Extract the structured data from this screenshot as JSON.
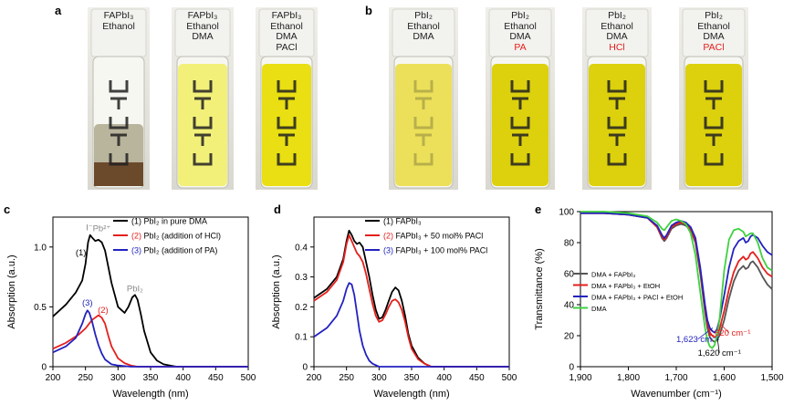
{
  "panels": {
    "a": {
      "letter": "a",
      "vials": [
        {
          "lines": [
            "FAPbI₃",
            "Ethanol"
          ],
          "extra": "",
          "liquid": "#b9b49c",
          "cap": "#f2f2ef"
        },
        {
          "lines": [
            "FAPbI₃",
            "Ethanol",
            "DMA"
          ],
          "extra": "",
          "liquid": "#f3f07a",
          "cap": "#f2f2ef"
        },
        {
          "lines": [
            "FAPbI₃",
            "Ethanol",
            "DMA",
            "PACl"
          ],
          "extra": "",
          "liquid": "#e9df12",
          "cap": "#f2f2ef"
        }
      ]
    },
    "b": {
      "letter": "b",
      "vials": [
        {
          "lines": [
            "PbI₂",
            "Ethanol",
            "DMA"
          ],
          "extra": "",
          "liquid": "#ece05a",
          "cap": "#f2f2ef"
        },
        {
          "lines": [
            "PbI₂",
            "Ethanol",
            "DMA"
          ],
          "extra": "PA",
          "liquid": "#dcd10c",
          "cap": "#f2f2ef"
        },
        {
          "lines": [
            "PbI₂",
            "Ethanol",
            "DMA"
          ],
          "extra": "HCl",
          "liquid": "#dcd10c",
          "cap": "#f2f2ef"
        },
        {
          "lines": [
            "PbI₂",
            "Ethanol",
            "DMA"
          ],
          "extra": "PACl",
          "liquid": "#dcd10c",
          "cap": "#f2f2ef"
        }
      ],
      "extra_color": "#e4201c"
    },
    "c": {
      "letter": "c"
    },
    "d": {
      "letter": "d"
    },
    "e": {
      "letter": "e"
    }
  },
  "chart_data": [
    {
      "type": "line",
      "panel": "c",
      "xlabel": "Wavelength (nm)",
      "ylabel": "Absorption (a.u.)",
      "xlim": [
        200,
        500
      ],
      "ylim": [
        0,
        1.25
      ],
      "xticks": [
        200,
        250,
        300,
        350,
        400,
        450,
        500
      ],
      "yticks": [
        0,
        0.5,
        1.0
      ],
      "ytick_labels": [
        "0",
        "0.5",
        "1.0"
      ],
      "legend_position": "top-right",
      "annotations": [
        {
          "text": "I⁻",
          "x": 256,
          "y": 1.14,
          "color": "#888888"
        },
        {
          "text": "Pb²⁺",
          "x": 275,
          "y": 1.13,
          "color": "#888888"
        },
        {
          "text": "PbI₂",
          "x": 326,
          "y": 0.63,
          "color": "#888888"
        },
        {
          "text": "(1)",
          "x": 243,
          "y": 0.93,
          "color": "#000000"
        },
        {
          "text": "(2)",
          "x": 277,
          "y": 0.45,
          "color": "#e4201c"
        },
        {
          "text": "(3)",
          "x": 253,
          "y": 0.51,
          "color": "#2222c0"
        }
      ],
      "series": [
        {
          "name": "(1) PbI₂ in pure DMA",
          "legend_num": "(1)",
          "legend_text": "PbI₂ in pure DMA",
          "color": "#000000",
          "x": [
            200,
            220,
            235,
            245,
            250,
            254,
            257,
            260,
            265,
            270,
            275,
            280,
            290,
            300,
            310,
            316,
            322,
            326,
            330,
            335,
            340,
            350,
            360,
            370,
            380,
            390,
            400,
            420,
            450,
            500
          ],
          "y": [
            0.42,
            0.52,
            0.62,
            0.72,
            0.86,
            1.04,
            1.1,
            1.08,
            1.05,
            1.06,
            1.04,
            0.97,
            0.7,
            0.5,
            0.45,
            0.5,
            0.58,
            0.6,
            0.56,
            0.44,
            0.3,
            0.12,
            0.05,
            0.02,
            0.01,
            0.0,
            0.0,
            0.0,
            0.0,
            0.0
          ]
        },
        {
          "name": "(2) PbI₂ (addition of HCl)",
          "legend_num": "(2)",
          "legend_text": "PbI₂ (addition of HCl)",
          "color": "#e4201c",
          "x": [
            200,
            220,
            240,
            250,
            260,
            265,
            270,
            275,
            280,
            285,
            290,
            300,
            310,
            320,
            330,
            350,
            400,
            500
          ],
          "y": [
            0.15,
            0.2,
            0.27,
            0.32,
            0.39,
            0.41,
            0.43,
            0.41,
            0.36,
            0.26,
            0.17,
            0.07,
            0.03,
            0.01,
            0.0,
            0.0,
            0.0,
            0.0
          ]
        },
        {
          "name": "(3) PbI₂ (addition of PA)",
          "legend_num": "(3)",
          "legend_text": "PbI₂ (addition of PA)",
          "color": "#2222c0",
          "x": [
            200,
            220,
            235,
            245,
            250,
            253,
            256,
            260,
            265,
            270,
            275,
            280,
            290,
            300,
            320,
            350,
            400,
            500
          ],
          "y": [
            0.12,
            0.17,
            0.24,
            0.36,
            0.44,
            0.47,
            0.45,
            0.38,
            0.27,
            0.18,
            0.11,
            0.06,
            0.02,
            0.01,
            0.0,
            0.0,
            0.0,
            0.0
          ]
        }
      ]
    },
    {
      "type": "line",
      "panel": "d",
      "xlabel": "Wavelength (nm)",
      "ylabel": "Absorption (a.u.)",
      "xlim": [
        200,
        500
      ],
      "ylim": [
        0,
        0.5
      ],
      "xticks": [
        200,
        250,
        300,
        350,
        400,
        450,
        500
      ],
      "yticks": [
        0,
        0.1,
        0.2,
        0.3,
        0.4
      ],
      "ytick_labels": [
        "0",
        "0.1",
        "0.2",
        "0.3",
        "0.4"
      ],
      "legend_position": "top-right",
      "series": [
        {
          "name": "(1) FAPbI₃",
          "legend_num": "(1)",
          "legend_text": "FAPbI₃",
          "color": "#000000",
          "x": [
            200,
            220,
            235,
            245,
            250,
            254,
            258,
            262,
            266,
            270,
            275,
            280,
            285,
            290,
            295,
            300,
            305,
            310,
            315,
            320,
            325,
            330,
            335,
            340,
            345,
            350,
            360,
            370,
            380,
            400,
            450,
            500
          ],
          "y": [
            0.23,
            0.26,
            0.3,
            0.36,
            0.42,
            0.455,
            0.44,
            0.42,
            0.41,
            0.415,
            0.4,
            0.35,
            0.3,
            0.24,
            0.19,
            0.16,
            0.165,
            0.19,
            0.22,
            0.25,
            0.265,
            0.255,
            0.22,
            0.17,
            0.11,
            0.07,
            0.03,
            0.01,
            0.0,
            0.0,
            0.0,
            0.0
          ]
        },
        {
          "name": "(2) FAPbI₃ + 50 mol% PACl",
          "legend_num": "(2)",
          "legend_text": "FAPbI₃ + 50 mol% PACl",
          "color": "#e4201c",
          "x": [
            200,
            220,
            235,
            245,
            250,
            254,
            258,
            262,
            266,
            270,
            275,
            280,
            285,
            290,
            295,
            300,
            305,
            310,
            315,
            320,
            325,
            330,
            335,
            340,
            345,
            350,
            360,
            370,
            380,
            400,
            450,
            500
          ],
          "y": [
            0.22,
            0.25,
            0.29,
            0.35,
            0.41,
            0.44,
            0.42,
            0.4,
            0.38,
            0.37,
            0.35,
            0.31,
            0.26,
            0.21,
            0.17,
            0.15,
            0.155,
            0.175,
            0.2,
            0.22,
            0.225,
            0.215,
            0.19,
            0.15,
            0.1,
            0.06,
            0.025,
            0.01,
            0.0,
            0.0,
            0.0,
            0.0
          ]
        },
        {
          "name": "(3) FAPbI₃ + 100 mol% PACl",
          "legend_num": "(3)",
          "legend_text": "FAPbI₃ + 100 mol% PACl",
          "color": "#2222c0",
          "x": [
            200,
            220,
            235,
            245,
            250,
            254,
            258,
            262,
            266,
            270,
            275,
            280,
            285,
            290,
            300,
            320,
            350,
            400,
            500
          ],
          "y": [
            0.1,
            0.13,
            0.17,
            0.22,
            0.26,
            0.28,
            0.275,
            0.24,
            0.18,
            0.12,
            0.07,
            0.04,
            0.02,
            0.01,
            0.0,
            0.0,
            0.0,
            0.0,
            0.0
          ]
        }
      ]
    },
    {
      "type": "line",
      "panel": "e",
      "xlabel": "Wavenumber (cm⁻¹)",
      "ylabel": "Transmittance (%)",
      "xlim": [
        1900,
        1500
      ],
      "ylim": [
        0,
        100
      ],
      "xticks": [
        1900,
        1800,
        1700,
        1600,
        1500
      ],
      "xtick_labels": [
        "1,900",
        "1,800",
        "1,700",
        "1,600",
        "1,500"
      ],
      "yticks": [
        0,
        20,
        40,
        60,
        80,
        100
      ],
      "legend_position": "center-right",
      "annotations": [
        {
          "text": "1,623 cm⁻¹",
          "x": 1655,
          "y": 16,
          "color": "#2222c0",
          "arrow_to": [
            1624,
            25
          ]
        },
        {
          "text": "1,620 cm⁻¹",
          "x": 1590,
          "y": 20,
          "color": "#e4201c",
          "arrow_to": [
            1606,
            27
          ]
        },
        {
          "text": "1,620 cm⁻¹",
          "x": 1610,
          "y": 7,
          "color": "#000000",
          "arrow_to": [
            1614,
            18
          ]
        }
      ],
      "series": [
        {
          "name": "DMA + FAPbI₃",
          "color": "#555555",
          "x": [
            1900,
            1850,
            1800,
            1760,
            1740,
            1730,
            1725,
            1720,
            1710,
            1700,
            1690,
            1680,
            1670,
            1660,
            1650,
            1640,
            1635,
            1630,
            1625,
            1620,
            1615,
            1610,
            1600,
            1590,
            1580,
            1570,
            1560,
            1555,
            1550,
            1545,
            1540,
            1530,
            1520,
            1510,
            1500
          ],
          "y": [
            99,
            99,
            98,
            96,
            90,
            83,
            81,
            83,
            89,
            91,
            92,
            91,
            88,
            80,
            60,
            35,
            25,
            19,
            17,
            16,
            17,
            20,
            30,
            44,
            55,
            62,
            65,
            63,
            64,
            67,
            68,
            64,
            58,
            53,
            50
          ]
        },
        {
          "name": "DMA + FAPbI₃ + EtOH",
          "color": "#e4201c",
          "x": [
            1900,
            1850,
            1800,
            1760,
            1740,
            1730,
            1725,
            1720,
            1710,
            1700,
            1690,
            1680,
            1670,
            1660,
            1650,
            1640,
            1635,
            1630,
            1625,
            1620,
            1615,
            1610,
            1600,
            1590,
            1580,
            1570,
            1560,
            1555,
            1550,
            1545,
            1540,
            1530,
            1520,
            1510,
            1500
          ],
          "y": [
            99,
            99,
            98,
            96,
            90,
            84,
            82,
            84,
            90,
            92,
            93,
            92,
            89,
            81,
            62,
            38,
            28,
            22,
            20,
            19,
            20,
            24,
            36,
            50,
            61,
            68,
            71,
            69,
            70,
            73,
            74,
            70,
            64,
            60,
            58
          ]
        },
        {
          "name": "DMA + FAPbI₃ + PACl + EtOH",
          "color": "#2222c0",
          "x": [
            1900,
            1850,
            1800,
            1760,
            1740,
            1730,
            1725,
            1720,
            1710,
            1700,
            1690,
            1680,
            1670,
            1660,
            1650,
            1640,
            1635,
            1630,
            1625,
            1620,
            1615,
            1610,
            1600,
            1590,
            1580,
            1570,
            1560,
            1555,
            1550,
            1545,
            1540,
            1530,
            1520,
            1510,
            1500
          ],
          "y": [
            99,
            99,
            98,
            96,
            91,
            85,
            83,
            85,
            91,
            93,
            94,
            93,
            90,
            83,
            64,
            40,
            30,
            25,
            23,
            22,
            24,
            30,
            46,
            64,
            76,
            81,
            83,
            80,
            81,
            84,
            85,
            83,
            78,
            74,
            72
          ]
        },
        {
          "name": "DMA",
          "color": "#3fd13f",
          "x": [
            1900,
            1850,
            1800,
            1760,
            1740,
            1730,
            1725,
            1720,
            1710,
            1700,
            1690,
            1680,
            1670,
            1660,
            1650,
            1640,
            1635,
            1630,
            1625,
            1620,
            1615,
            1610,
            1600,
            1590,
            1580,
            1570,
            1560,
            1555,
            1550,
            1545,
            1540,
            1530,
            1520,
            1510,
            1500
          ],
          "y": [
            100,
            100,
            99,
            97,
            93,
            89,
            88,
            90,
            94,
            95,
            94,
            92,
            86,
            72,
            48,
            25,
            17,
            13,
            12,
            14,
            20,
            30,
            62,
            82,
            88,
            89,
            87,
            84,
            85,
            86,
            86,
            80,
            70,
            64,
            62
          ]
        }
      ]
    }
  ]
}
